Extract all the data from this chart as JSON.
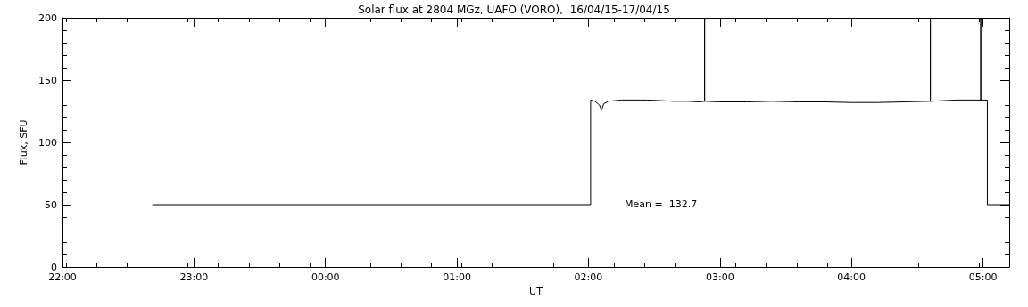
{
  "chart_data": {
    "type": "line",
    "title": "Solar flux at 2804 MGz, UAFO (VORO),  16/04/15-17/04/15",
    "xlabel": "UT",
    "ylabel": "Flux, SFU",
    "annotations": [
      "Mean =  132.7"
    ],
    "series": [
      {
        "color": "#000000",
        "x": [
          "--04-16T22:41",
          "--04-17T02:01",
          "--04-17T02:01",
          "--04-17T02:03",
          "--04-17T02:05",
          "--04-17T02:06",
          "--04-17T02:07",
          "--04-17T02:09",
          "--04-17T02:15",
          "--04-17T02:21",
          "--04-17T02:27",
          "--04-17T02:33",
          "--04-17T02:39",
          "--04-17T02:45",
          "--04-17T02:51",
          "--04-17T02:53",
          "--04-17T02:53",
          "--04-17T02:53",
          "--04-17T03:00",
          "--04-17T03:12",
          "--04-17T03:24",
          "--04-17T03:36",
          "--04-17T03:48",
          "--04-17T04:00",
          "--04-17T04:12",
          "--04-17T04:24",
          "--04-17T04:36",
          "--04-17T04:36",
          "--04-17T04:36",
          "--04-17T04:48",
          "--04-17T04:59",
          "--04-17T04:59",
          "--04-17T04:59",
          "--04-17T05:02",
          "--04-17T05:02",
          "--04-17T05:12"
        ],
        "values": [
          50,
          50,
          134,
          133,
          130,
          126,
          131,
          133,
          134,
          134,
          134,
          133.5,
          133,
          133,
          132.5,
          133,
          200,
          133,
          132.5,
          132.5,
          133,
          132.5,
          132.5,
          132,
          132,
          132.5,
          133,
          200,
          133,
          134,
          134,
          200,
          134,
          134,
          50,
          50
        ]
      }
    ],
    "xlim": [
      "--04-16T22:00",
      "--04-17T05:12"
    ],
    "xticks": [
      {
        "value": "--04-16T22:00",
        "label": "22:00"
      },
      {
        "value": "--04-16T23:00",
        "label": "23:00"
      },
      {
        "value": "--04-17T00:00",
        "label": "00:00"
      },
      {
        "value": "--04-17T01:00",
        "label": "01:00"
      },
      {
        "value": "--04-17T02:00",
        "label": "02:00"
      },
      {
        "value": "--04-17T03:00",
        "label": "03:00"
      },
      {
        "value": "--04-17T04:00",
        "label": "04:00"
      },
      {
        "value": "--04-17T05:00",
        "label": "05:00"
      }
    ],
    "ylim": [
      0,
      200
    ],
    "yticks": [
      0,
      50,
      100,
      150,
      200
    ],
    "grid": false,
    "marker": "none",
    "line_style": "solid"
  }
}
